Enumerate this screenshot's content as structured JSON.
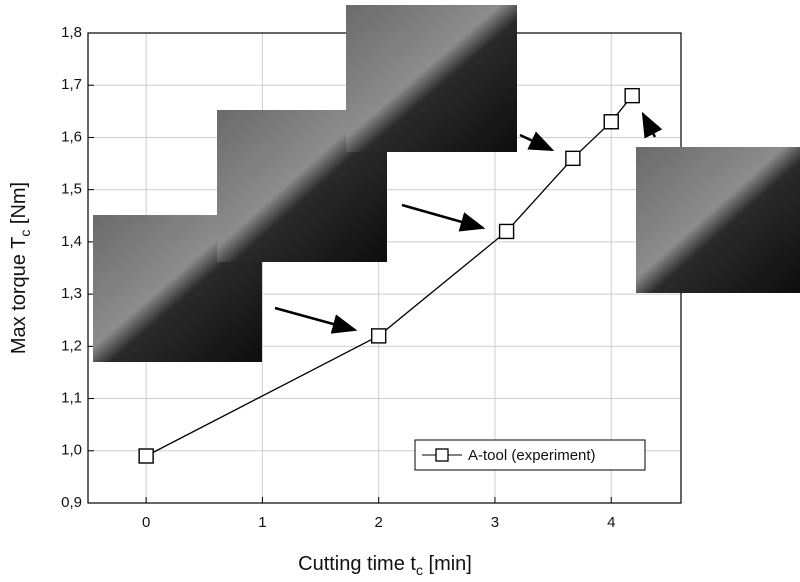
{
  "chart_data": {
    "type": "line",
    "x_label": {
      "text": "Cutting time t",
      "sub": "c",
      "rest": " [min]"
    },
    "y_label": {
      "text": "Max torque T",
      "sub": "c",
      "rest": " [Nm]"
    },
    "x": [
      0,
      2,
      3.1,
      3.67,
      4,
      4.18
    ],
    "series": [
      {
        "name": "A-tool (experiment)",
        "color": "#000000",
        "values": [
          0.99,
          1.22,
          1.42,
          1.56,
          1.63,
          1.68
        ]
      }
    ],
    "xlim": [
      -0.5,
      4.6
    ],
    "xticks": [
      0,
      1,
      2,
      3,
      4
    ],
    "ylim": [
      0.9,
      1.8
    ],
    "yticks": [
      {
        "value": 0.9,
        "label": "0,9"
      },
      {
        "value": 1.0,
        "label": "1,0"
      },
      {
        "value": 1.1,
        "label": "1,1"
      },
      {
        "value": 1.2,
        "label": "1,2"
      },
      {
        "value": 1.3,
        "label": "1,3"
      },
      {
        "value": 1.4,
        "label": "1,4"
      },
      {
        "value": 1.5,
        "label": "1,5"
      },
      {
        "value": 1.6,
        "label": "1,6"
      },
      {
        "value": 1.7,
        "label": "1,7"
      },
      {
        "value": 1.8,
        "label": "1,8"
      }
    ],
    "grid": true,
    "legend": "lower right"
  }
}
